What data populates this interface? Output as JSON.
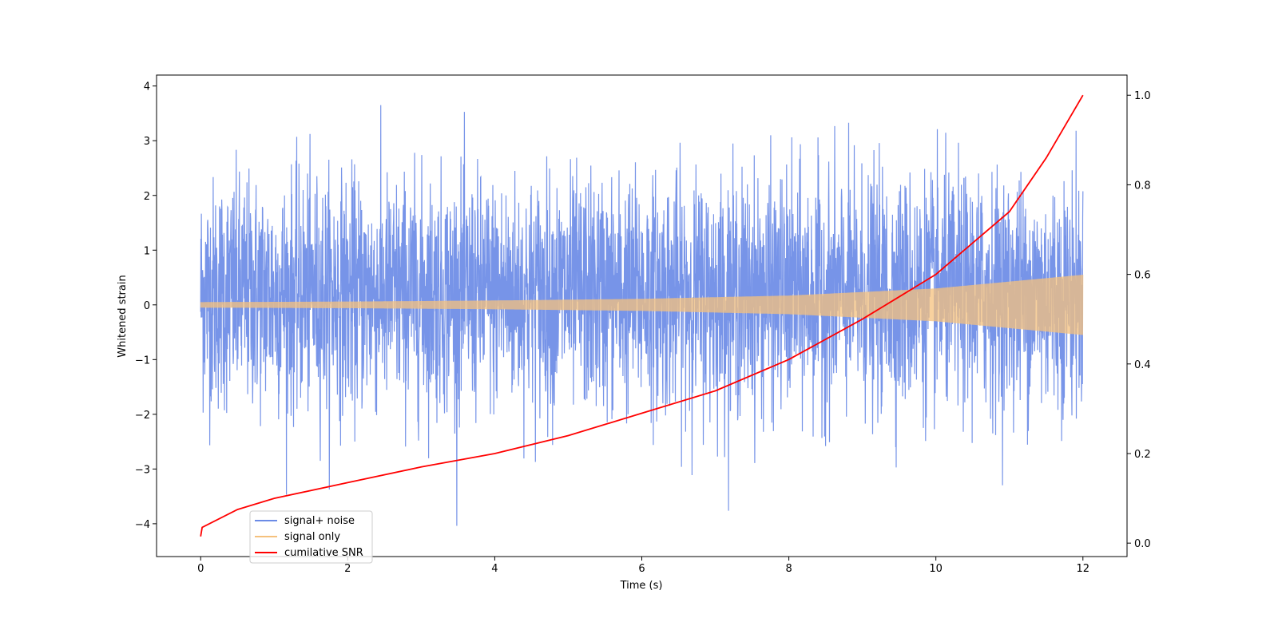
{
  "chart_data": {
    "type": "line",
    "xlabel": "Time (s)",
    "ylabel": "Whitened strain",
    "y2label": "",
    "xlim": [
      -0.6,
      12.6
    ],
    "ylim": [
      -4.6,
      4.2
    ],
    "y2lim": [
      -0.03,
      1.045
    ],
    "x_ticks": [
      0,
      2,
      4,
      6,
      8,
      10,
      12
    ],
    "y_ticks": [
      -4,
      -3,
      -2,
      -1,
      0,
      1,
      2,
      3,
      4
    ],
    "y2_ticks": [
      0.0,
      0.2,
      0.4,
      0.6,
      0.8,
      1.0
    ],
    "x_tick_labels": [
      "0",
      "2",
      "4",
      "6",
      "8",
      "10",
      "12"
    ],
    "y_tick_labels": [
      "−4",
      "−3",
      "−2",
      "−1",
      "0",
      "1",
      "2",
      "3",
      "4"
    ],
    "y2_tick_labels": [
      "0.0",
      "0.2",
      "0.4",
      "0.6",
      "0.8",
      "1.0"
    ],
    "grid": false,
    "legend_placement": "lower-left",
    "series": [
      {
        "name": "signal+ noise",
        "color": "#6b8be6",
        "axis": "left",
        "kind": "noise",
        "x_range": [
          0,
          12
        ],
        "typical_band": [
          -1.5,
          1.9
        ],
        "max": 3.8,
        "min": -4.15
      },
      {
        "name": "signal only",
        "color": "#f5c17d",
        "axis": "left",
        "kind": "chirp",
        "x_range": [
          0,
          12
        ],
        "envelope": [
          [
            0,
            0.05
          ],
          [
            2,
            0.06
          ],
          [
            4,
            0.08
          ],
          [
            6,
            0.11
          ],
          [
            8,
            0.17
          ],
          [
            10,
            0.3
          ],
          [
            12,
            0.55
          ]
        ]
      },
      {
        "name": "cumilative SNR",
        "color": "#ff0000",
        "axis": "right",
        "kind": "line",
        "x": [
          0,
          0.02,
          0.5,
          1,
          2,
          3,
          4,
          5,
          6,
          7,
          8,
          9,
          9.5,
          10,
          10.5,
          11,
          11.5,
          12
        ],
        "values": [
          0.015,
          0.035,
          0.075,
          0.1,
          0.135,
          0.17,
          0.2,
          0.24,
          0.29,
          0.34,
          0.41,
          0.5,
          0.55,
          0.6,
          0.67,
          0.74,
          0.86,
          1.0
        ]
      }
    ]
  }
}
